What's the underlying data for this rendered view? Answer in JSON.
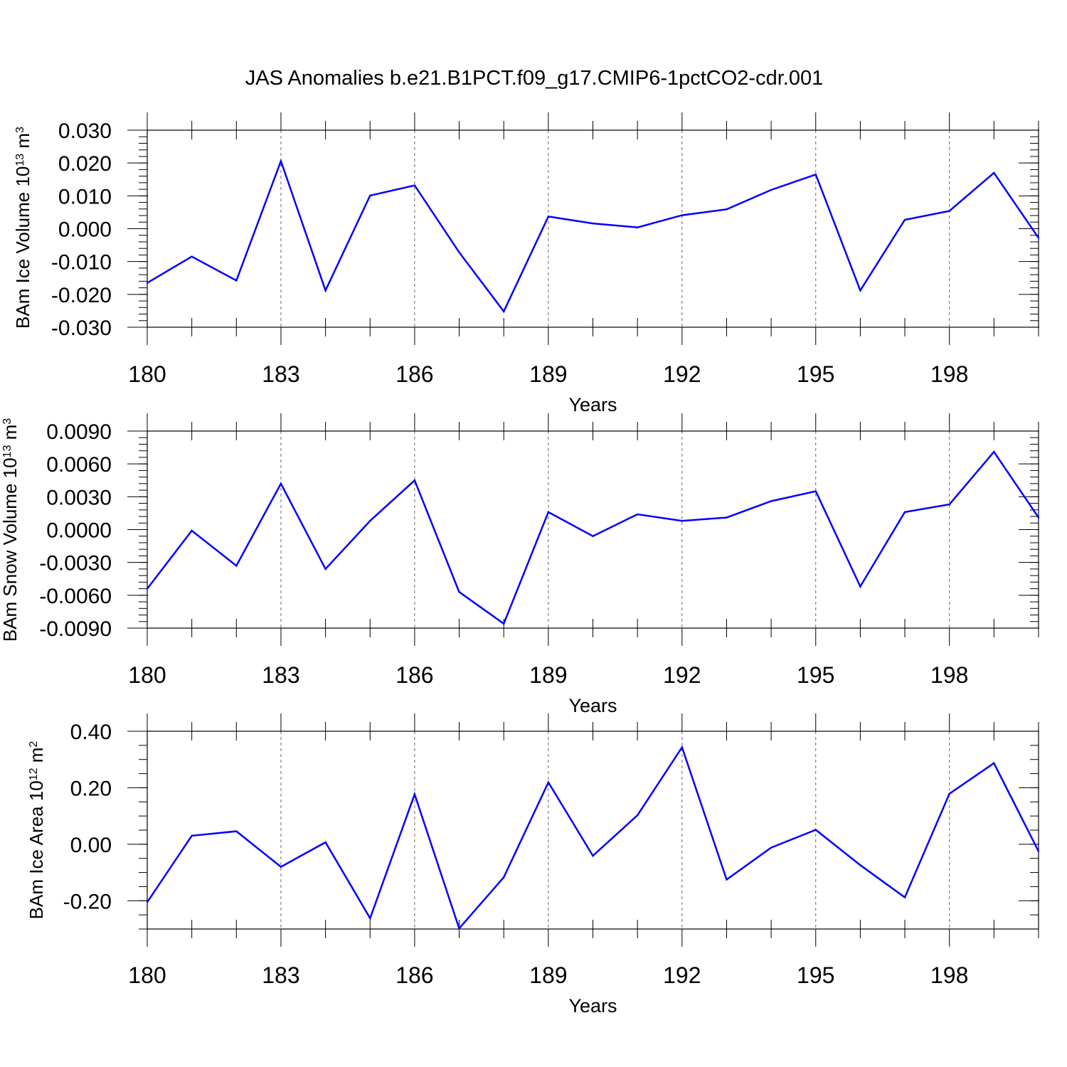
{
  "title": "JAS Anomalies b.e21.B1PCT.f09_g17.CMIP6-1pctCO2-cdr.001",
  "colors": {
    "line": "#0000ff",
    "axis": "#000000",
    "grid": "#666666"
  },
  "chart_data": [
    {
      "type": "line",
      "ylabel": {
        "base": "BAm Ice Volume 10",
        "exp": "13",
        "unit": " m",
        "unit_exp": "3"
      },
      "xlabel": "Years",
      "x": [
        180,
        181,
        182,
        183,
        184,
        185,
        186,
        187,
        188,
        189,
        190,
        191,
        192,
        193,
        194,
        195,
        196,
        197,
        198,
        199,
        200
      ],
      "x_ticks": [
        180,
        183,
        186,
        189,
        192,
        195,
        198
      ],
      "x_tick_labels": [
        "180",
        "183",
        "186",
        "189",
        "192",
        "195",
        "198"
      ],
      "xlim": [
        180,
        200
      ],
      "ylim": [
        -0.03,
        0.03
      ],
      "y_ticks": [
        0.03,
        0.02,
        0.01,
        0.0,
        -0.01,
        -0.02,
        -0.03
      ],
      "y_tick_labels": [
        "0.030",
        "0.020",
        "0.010",
        "0.000",
        "-0.010",
        "-0.020",
        "-0.030"
      ],
      "y_minor_step": 0.002,
      "grid": "vertical dashed at major x ticks",
      "values": [
        -0.0165,
        -0.0085,
        -0.0158,
        0.0206,
        -0.0188,
        0.0101,
        0.0132,
        -0.0072,
        -0.0252,
        0.0037,
        0.0016,
        0.0004,
        0.0041,
        0.0059,
        0.0118,
        0.0165,
        -0.0188,
        0.0027,
        0.0054,
        0.017,
        -0.0028
      ]
    },
    {
      "type": "line",
      "ylabel": {
        "base": "BAm Snow Volume 10",
        "exp": "13",
        "unit": " m",
        "unit_exp": "3"
      },
      "xlabel": "Years",
      "x": [
        180,
        181,
        182,
        183,
        184,
        185,
        186,
        187,
        188,
        189,
        190,
        191,
        192,
        193,
        194,
        195,
        196,
        197,
        198,
        199,
        200
      ],
      "x_ticks": [
        180,
        183,
        186,
        189,
        192,
        195,
        198
      ],
      "x_tick_labels": [
        "180",
        "183",
        "186",
        "189",
        "192",
        "195",
        "198"
      ],
      "xlim": [
        180,
        200
      ],
      "ylim": [
        -0.009,
        0.009
      ],
      "y_ticks": [
        0.009,
        0.006,
        0.003,
        0.0,
        -0.003,
        -0.006,
        -0.009
      ],
      "y_tick_labels": [
        "0.0090",
        "0.0060",
        "0.0030",
        "0.0000",
        "-0.0030",
        "-0.0060",
        "-0.0090"
      ],
      "y_minor_step": 0.0006,
      "grid": "vertical dashed at major x ticks",
      "values": [
        -0.0054,
        -0.0001,
        -0.0033,
        0.0042,
        -0.0036,
        0.0008,
        0.0045,
        -0.0057,
        -0.0086,
        0.0016,
        -0.0006,
        0.0014,
        0.0008,
        0.0011,
        0.0026,
        0.0035,
        -0.0052,
        0.0016,
        0.0023,
        0.0071,
        0.0011
      ]
    },
    {
      "type": "line",
      "ylabel": {
        "base": "BAm Ice Area 10",
        "exp": "12",
        "unit": " m",
        "unit_exp": "2"
      },
      "xlabel": "Years",
      "x": [
        180,
        181,
        182,
        183,
        184,
        185,
        186,
        187,
        188,
        189,
        190,
        191,
        192,
        193,
        194,
        195,
        196,
        197,
        198,
        199,
        200
      ],
      "x_ticks": [
        180,
        183,
        186,
        189,
        192,
        195,
        198
      ],
      "x_tick_labels": [
        "180",
        "183",
        "186",
        "189",
        "192",
        "195",
        "198"
      ],
      "xlim": [
        180,
        200
      ],
      "ylim": [
        -0.3,
        0.4
      ],
      "y_ticks": [
        0.4,
        0.2,
        0.0,
        -0.2
      ],
      "y_tick_labels": [
        "0.40",
        "0.20",
        "0.00",
        "-0.20"
      ],
      "y_minor_step": 0.05,
      "grid": "vertical dashed at major x ticks",
      "values": [
        -0.205,
        0.03,
        0.046,
        -0.08,
        0.007,
        -0.262,
        0.177,
        -0.298,
        -0.117,
        0.219,
        -0.041,
        0.103,
        0.343,
        -0.125,
        -0.012,
        0.051,
        -0.074,
        -0.188,
        0.179,
        0.287,
        -0.025
      ]
    }
  ]
}
